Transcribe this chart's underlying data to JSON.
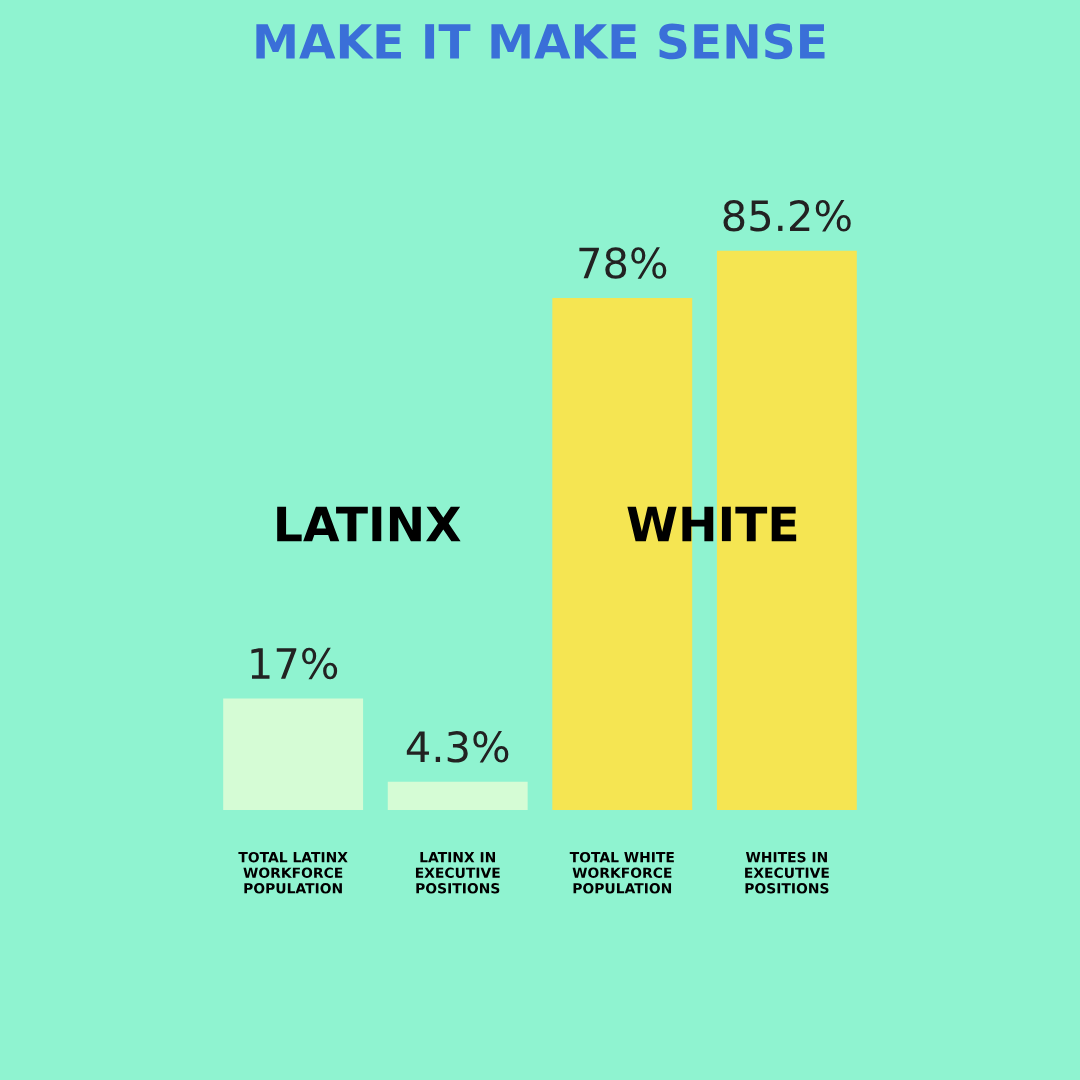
{
  "chart_data": {
    "type": "bar",
    "title": "MAKE IT MAKE SENSE",
    "categories": [
      "TOTAL LATINX\nWORKFORCE\nPOPULATION",
      "LATINX IN\nEXECUTIVE\nPOSITIONS",
      "TOTAL WHITE\nWORKFORCE\nPOPULATION",
      "WHITES IN\nEXECUTIVE\nPOSITIONS"
    ],
    "values": [
      17,
      4.3,
      78,
      85.2
    ],
    "colors": [
      "#d5fcd5",
      "#d5fcd5",
      "#f5e552",
      "#f5e552"
    ],
    "value_labels": [
      "17%",
      "4.3%",
      "78%",
      "85.2%"
    ],
    "annotations": [
      "LATINX",
      "WHITE"
    ],
    "tick_labels": "x",
    "grid": false,
    "legend": false
  }
}
